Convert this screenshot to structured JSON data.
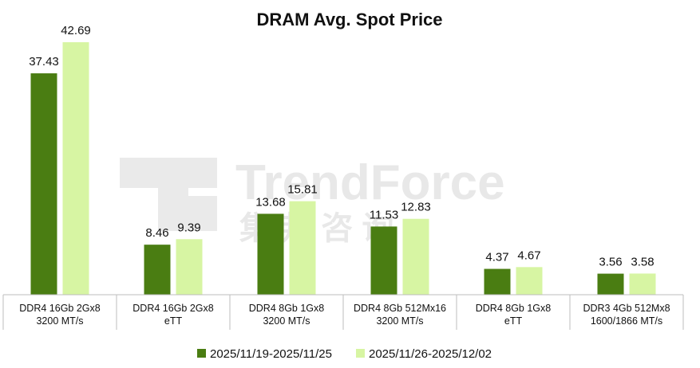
{
  "watermark": {
    "brand_text": "TrendForce",
    "cn_text": "集 邦 咨 询"
  },
  "chart_data": {
    "type": "bar",
    "title": "DRAM Avg. Spot Price",
    "categories": [
      [
        "DDR4 16Gb 2Gx8",
        "3200 MT/s"
      ],
      [
        "DDR4 16Gb 2Gx8",
        "eTT"
      ],
      [
        "DDR4 8Gb 1Gx8",
        "3200 MT/s"
      ],
      [
        "DDR4 8Gb 512Mx16",
        "3200 MT/s"
      ],
      [
        "DDR4 8Gb 1Gx8",
        "eTT"
      ],
      [
        "DDR3 4Gb 512Mx8",
        "1600/1866 MT/s"
      ]
    ],
    "series": [
      {
        "name": "2025/11/19-2025/11/25",
        "color": "#4a7d12",
        "values": [
          37.43,
          8.46,
          13.68,
          11.53,
          4.37,
          3.56
        ]
      },
      {
        "name": "2025/11/26-2025/12/02",
        "color": "#d7f5a3",
        "values": [
          42.69,
          9.39,
          15.81,
          12.83,
          4.67,
          3.58
        ]
      }
    ],
    "ylim": [
      0,
      45
    ],
    "grid": false,
    "legend": "bottom-center"
  }
}
